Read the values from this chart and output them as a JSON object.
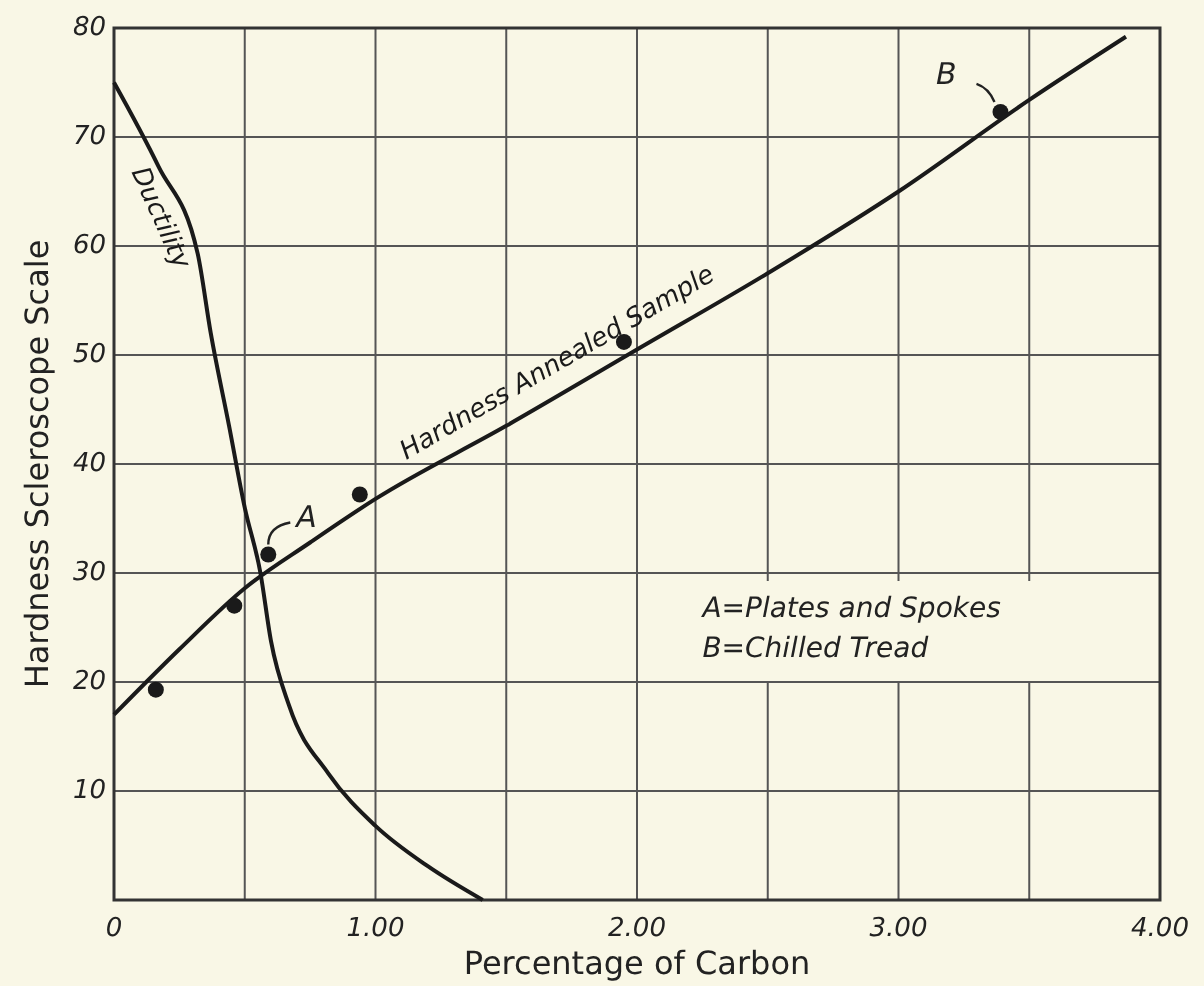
{
  "chart_data": {
    "type": "line",
    "xlabel": "Percentage of Carbon",
    "ylabel": "Hardness Scleroscope Scale",
    "xlim": [
      0,
      4
    ],
    "ylim": [
      0,
      80
    ],
    "xticks": [
      0,
      {
        "value": 0.5,
        "label": null
      },
      {
        "value": 1,
        "label": "1.00"
      },
      {
        "value": 1.5,
        "label": null
      },
      {
        "value": 2,
        "label": "2.00"
      },
      {
        "value": 2.5,
        "label": null
      },
      {
        "value": 3,
        "label": "3.00"
      },
      {
        "value": 3.5,
        "label": null
      },
      {
        "value": 4,
        "label": "4.00"
      }
    ],
    "yticks": [
      10,
      20,
      30,
      40,
      50,
      60,
      70,
      80
    ],
    "grid": true,
    "line_style": "solid",
    "marker": "none",
    "series": [
      {
        "name": "Ductility",
        "color": "#1a1a1a",
        "x": [
          0,
          0.17,
          0.32,
          0.37,
          0.44,
          0.5,
          0.56,
          0.6,
          0.67,
          0.82,
          1.0,
          1.2,
          1.41
        ],
        "values": [
          75,
          67.3,
          59.3,
          52,
          43.5,
          36,
          30,
          23.8,
          17.8,
          11.6,
          6.8,
          3.1,
          0
        ]
      },
      {
        "name": "Hardness Annealed Sample",
        "color": "#1a1a1a",
        "x": [
          0,
          0.25,
          0.5,
          0.75,
          1.0,
          1.5,
          2.0,
          2.5,
          3.0,
          3.5,
          3.87
        ],
        "values": [
          17,
          23,
          28.6,
          32.8,
          36.8,
          43.5,
          50.5,
          57.5,
          65,
          73.4,
          79.2
        ]
      },
      {
        "type": "scatter",
        "color": "#1a1a1a",
        "marker": "circle",
        "x": [
          0.16,
          0.46,
          0.59,
          0.94,
          1.95,
          3.39
        ],
        "values": [
          19.3,
          27,
          31.7,
          37.2,
          51.2,
          72.3
        ]
      }
    ],
    "annotations": [
      {
        "text": "A",
        "x": 0.59,
        "y": 31.7
      },
      {
        "text": "B",
        "x": 3.39,
        "y": 72.3
      },
      "A=Plates and Spokes",
      "B=Chilled Tread"
    ]
  }
}
